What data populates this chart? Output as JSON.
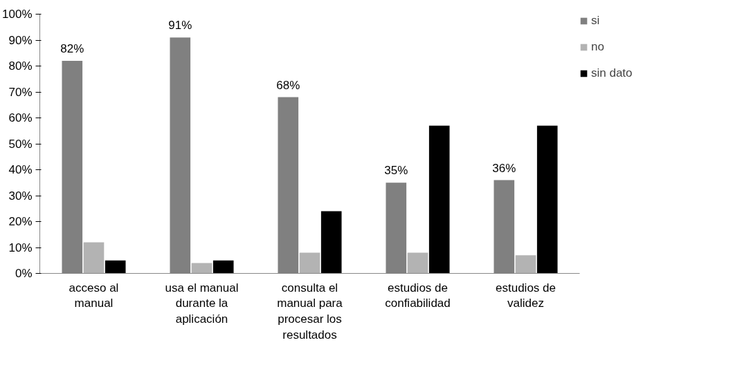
{
  "chart_data": {
    "type": "bar",
    "categories": [
      "acceso al manual",
      "usa el manual durante la aplicación",
      "consulta el manual para procesar los resultados",
      "estudios de confiabilidad",
      "estudios de validez"
    ],
    "series": [
      {
        "name": "si",
        "color": "#808080",
        "values": [
          82,
          91,
          68,
          35,
          36
        ],
        "value_labels": [
          "82%",
          "91%",
          "68%",
          "35%",
          "36%"
        ]
      },
      {
        "name": "no",
        "color": "#b3b3b3",
        "values": [
          12,
          4,
          8,
          8,
          7
        ]
      },
      {
        "name": "sin dato",
        "color": "#000000",
        "values": [
          5,
          5,
          24,
          57,
          57
        ]
      }
    ],
    "ylim": [
      0,
      100
    ],
    "yticks": [
      {
        "value": 0,
        "label": "0%"
      },
      {
        "value": 10,
        "label": "10%"
      },
      {
        "value": 20,
        "label": "20%"
      },
      {
        "value": 30,
        "label": "30%"
      },
      {
        "value": 40,
        "label": "40%"
      },
      {
        "value": 50,
        "label": "50%"
      },
      {
        "value": 60,
        "label": "60%"
      },
      {
        "value": 70,
        "label": "70%"
      },
      {
        "value": 80,
        "label": "80%"
      },
      {
        "value": 90,
        "label": "90%"
      },
      {
        "value": 100,
        "label": "100%"
      }
    ],
    "grid": false,
    "legend": "right"
  }
}
